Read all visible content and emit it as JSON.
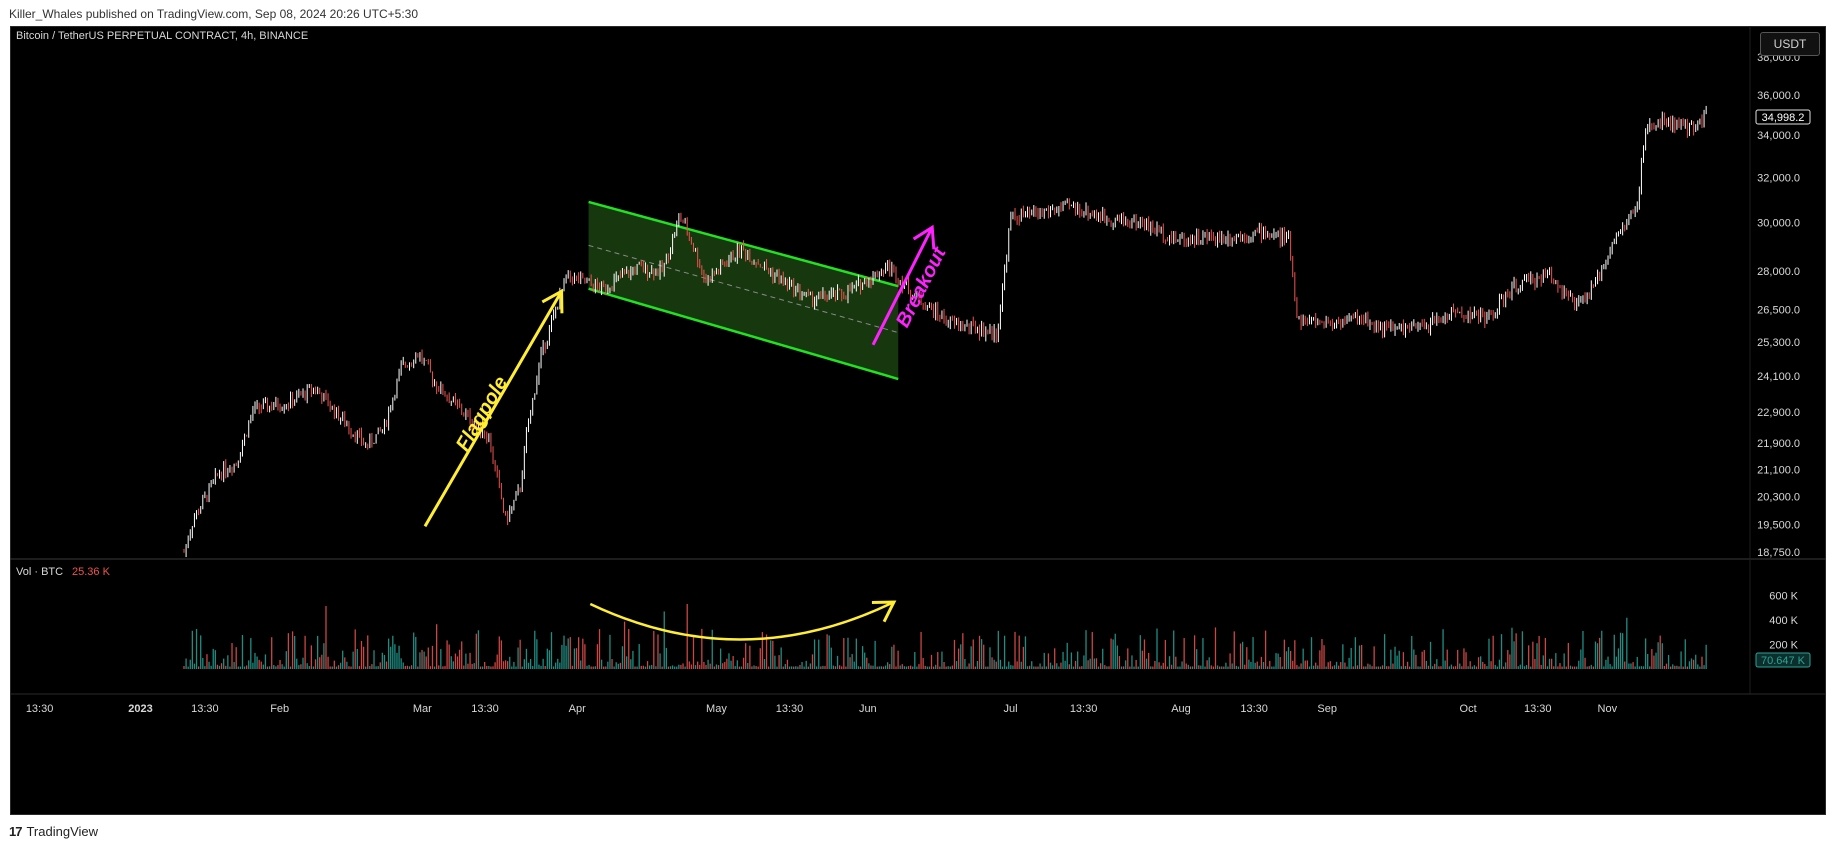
{
  "publisher_line": "Killer_Whales published on TradingView.com, Sep 08, 2024 20:26 UTC+5:30",
  "symbol_title": "Bitcoin / TetherUS PERPETUAL CONTRACT, 4h, BINANCE",
  "currency_button": "USDT",
  "footer_brand": "TradingView",
  "footer_mark": "17",
  "colors": {
    "background": "#000000",
    "up": "#ffffff",
    "down": "#ef5350",
    "vol_up": "#26a69a",
    "vol_down": "#ef5350",
    "channel": "#22e022",
    "flagpole": "#ffee33",
    "breakout": "#ff22ff",
    "vol_arc": "#ffee33"
  },
  "chart_data": {
    "type": "candlestick",
    "title": "Bitcoin / TetherUS PERPETUAL CONTRACT, 4h, BINANCE",
    "x_tick_labels": [
      "13:30",
      "2023",
      "13:30",
      "Feb",
      "Mar",
      "13:30",
      "Apr",
      "May",
      "13:30",
      "Jun",
      "Jul",
      "13:30",
      "Aug",
      "13:30",
      "Sep",
      "Oct",
      "13:30",
      "Nov"
    ],
    "y_tick_labels": [
      "38,000.0",
      "36,000.0",
      "34,000.0",
      "32,000.0",
      "30,000.0",
      "28,000.0",
      "26,500.0",
      "25,300.0",
      "24,100.0",
      "22,900.0",
      "21,900.0",
      "21,100.0",
      "20,300.0",
      "19,500.0",
      "18,750.0"
    ],
    "y_scale": "log",
    "last_price": "34,998.2",
    "price_path": [
      {
        "t": 0.1,
        "p": 18750
      },
      {
        "t": 0.105,
        "p": 19600
      },
      {
        "t": 0.12,
        "p": 21000
      },
      {
        "t": 0.13,
        "p": 21300
      },
      {
        "t": 0.14,
        "p": 23000
      },
      {
        "t": 0.16,
        "p": 23200
      },
      {
        "t": 0.175,
        "p": 23700
      },
      {
        "t": 0.19,
        "p": 22700
      },
      {
        "t": 0.205,
        "p": 21800
      },
      {
        "t": 0.215,
        "p": 22400
      },
      {
        "t": 0.225,
        "p": 24400
      },
      {
        "t": 0.235,
        "p": 24900
      },
      {
        "t": 0.245,
        "p": 23800
      },
      {
        "t": 0.26,
        "p": 22900
      },
      {
        "t": 0.275,
        "p": 22100
      },
      {
        "t": 0.285,
        "p": 19600
      },
      {
        "t": 0.293,
        "p": 20500
      },
      {
        "t": 0.297,
        "p": 22200
      },
      {
        "t": 0.305,
        "p": 24800
      },
      {
        "t": 0.32,
        "p": 27800
      },
      {
        "t": 0.34,
        "p": 27300
      },
      {
        "t": 0.36,
        "p": 28100
      },
      {
        "t": 0.375,
        "p": 28000
      },
      {
        "t": 0.385,
        "p": 30300
      },
      {
        "t": 0.39,
        "p": 29500
      },
      {
        "t": 0.4,
        "p": 27600
      },
      {
        "t": 0.42,
        "p": 28900
      },
      {
        "t": 0.44,
        "p": 27800
      },
      {
        "t": 0.46,
        "p": 26900
      },
      {
        "t": 0.48,
        "p": 27100
      },
      {
        "t": 0.505,
        "p": 28200
      },
      {
        "t": 0.52,
        "p": 27000
      },
      {
        "t": 0.54,
        "p": 26000
      },
      {
        "t": 0.555,
        "p": 25800
      },
      {
        "t": 0.567,
        "p": 25600
      },
      {
        "t": 0.57,
        "p": 27000
      },
      {
        "t": 0.575,
        "p": 30200
      },
      {
        "t": 0.59,
        "p": 30400
      },
      {
        "t": 0.61,
        "p": 30700
      },
      {
        "t": 0.63,
        "p": 30200
      },
      {
        "t": 0.65,
        "p": 30000
      },
      {
        "t": 0.67,
        "p": 29300
      },
      {
        "t": 0.7,
        "p": 29400
      },
      {
        "t": 0.72,
        "p": 29600
      },
      {
        "t": 0.735,
        "p": 29300
      },
      {
        "t": 0.74,
        "p": 26100
      },
      {
        "t": 0.76,
        "p": 26000
      },
      {
        "t": 0.775,
        "p": 26200
      },
      {
        "t": 0.79,
        "p": 25800
      },
      {
        "t": 0.81,
        "p": 25800
      },
      {
        "t": 0.83,
        "p": 26400
      },
      {
        "t": 0.85,
        "p": 26200
      },
      {
        "t": 0.865,
        "p": 27400
      },
      {
        "t": 0.885,
        "p": 27900
      },
      {
        "t": 0.9,
        "p": 26600
      },
      {
        "t": 0.91,
        "p": 27300
      },
      {
        "t": 0.92,
        "p": 29000
      },
      {
        "t": 0.935,
        "p": 30700
      },
      {
        "t": 0.94,
        "p": 34200
      },
      {
        "t": 0.95,
        "p": 34700
      },
      {
        "t": 0.965,
        "p": 34300
      },
      {
        "t": 0.975,
        "p": 34998.2
      }
    ],
    "volume_panel": {
      "label": "Vol · BTC",
      "label_value": "25.36 K",
      "y_tick_labels": [
        "600 K",
        "400 K",
        "200 K"
      ],
      "last_value": "70.647 K"
    },
    "annotations": [
      {
        "type": "arrow",
        "label": "Flagpole",
        "color": "#ffee33"
      },
      {
        "type": "parallel-channel",
        "label": "",
        "color": "#22e022"
      },
      {
        "type": "arrow",
        "label": "Breakout",
        "color": "#ff22ff"
      },
      {
        "type": "arc-arrow",
        "label": "",
        "color": "#ffee33",
        "panel": "volume"
      }
    ],
    "grid": false
  }
}
